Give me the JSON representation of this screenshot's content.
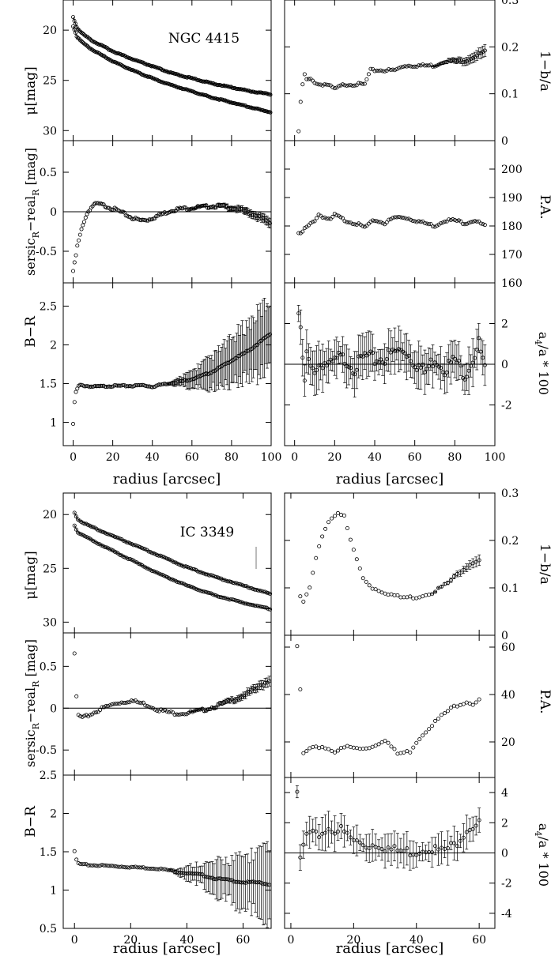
{
  "figures": [
    {
      "galaxy_label": "NGC 4415",
      "xlabel": "radius [arcsec]",
      "left_x": {
        "min": -5,
        "max": 100,
        "ticks": [
          0,
          20,
          40,
          60,
          80,
          100
        ]
      },
      "right_x": {
        "min": -5,
        "max": 100,
        "ticks": [
          0,
          20,
          40,
          60,
          80,
          100
        ]
      },
      "panels": {
        "mu": {
          "ylabel": "μ[mag]",
          "ylim": [
            31,
            17
          ],
          "ticks": [
            20,
            25,
            30
          ]
        },
        "resid": {
          "ylabel": "sersic_R−real_R [mag]",
          "ylim": [
            -0.9,
            0.9
          ],
          "ticks": [
            -0.5,
            0,
            0.5
          ],
          "tick_labels": [
            "-0.5",
            "0",
            "0.5"
          ]
        },
        "color": {
          "ylabel": "B−R",
          "ylim": [
            0.7,
            2.8
          ],
          "ticks": [
            1,
            1.5,
            2,
            2.5
          ]
        },
        "ell": {
          "ylabel": "1−b/a",
          "ylim": [
            0,
            0.3
          ],
          "ticks": [
            0,
            0.1,
            0.2,
            0.3
          ]
        },
        "pa": {
          "ylabel": "P.A.",
          "ylim": [
            160,
            210
          ],
          "ticks": [
            160,
            170,
            180,
            190,
            200
          ]
        },
        "a4": {
          "ylabel": "a4/a * 100",
          "ylim": [
            -4,
            4
          ],
          "ticks": [
            -2,
            0,
            2
          ]
        }
      }
    },
    {
      "galaxy_label": "IC 3349",
      "xlabel": "radius [arcsec]",
      "left_x": {
        "min": -4,
        "max": 70,
        "ticks": [
          0,
          20,
          40,
          60
        ]
      },
      "right_x": {
        "min": -2,
        "max": 65,
        "ticks": [
          0,
          20,
          40,
          60
        ]
      },
      "panels": {
        "mu": {
          "ylabel": "μ[mag]",
          "ylim": [
            31,
            18
          ],
          "ticks": [
            20,
            25,
            30
          ]
        },
        "resid": {
          "ylabel": "sersic_R−real_R [mag]",
          "ylim": [
            -0.8,
            0.9
          ],
          "ticks": [
            -0.5,
            0,
            0.5
          ],
          "tick_labels": [
            "-0.5",
            "0",
            "0.5"
          ]
        },
        "color": {
          "ylabel": "B−R",
          "ylim": [
            0.5,
            2.5
          ],
          "ticks": [
            0.5,
            1,
            1.5,
            2,
            2.5
          ]
        },
        "ell": {
          "ylabel": "1−b/a",
          "ylim": [
            0,
            0.3
          ],
          "ticks": [
            0,
            0.1,
            0.2,
            0.3
          ]
        },
        "pa": {
          "ylabel": "P.A.",
          "ylim": [
            5,
            65
          ],
          "ticks": [
            20,
            40,
            60
          ]
        },
        "a4": {
          "ylabel": "a4/a * 100",
          "ylim": [
            -5,
            5
          ],
          "ticks": [
            -4,
            -2,
            0,
            2,
            4
          ]
        }
      }
    }
  ],
  "chart_data": [
    {
      "type": "scatter",
      "title": "NGC 4415",
      "panel": "mu",
      "xlabel": "radius [arcsec]",
      "ylabel": "μ[mag]",
      "series": [
        {
          "x": [
            0,
            2,
            5,
            10,
            20,
            30,
            40,
            50,
            60,
            70,
            80,
            90,
            100
          ],
          "y": [
            18.7,
            19.8,
            20.4,
            21.1,
            22.1,
            22.9,
            23.6,
            24.3,
            24.8,
            25.3,
            25.7,
            26.1,
            26.4
          ]
        },
        {
          "x": [
            0,
            2,
            5,
            10,
            20,
            30,
            40,
            50,
            60,
            70,
            80,
            90,
            100
          ],
          "y": [
            19.6,
            20.7,
            21.3,
            22.0,
            23.1,
            24.0,
            24.8,
            25.5,
            26.1,
            26.7,
            27.2,
            27.7,
            28.2
          ]
        }
      ]
    },
    {
      "type": "scatter",
      "title": "NGC 4415",
      "panel": "resid",
      "xlabel": "radius [arcsec]",
      "ylabel": "sersic_R−real_R [mag]",
      "x": [
        0,
        1,
        2,
        4,
        6,
        8,
        10,
        12,
        14,
        18,
        22,
        26,
        30,
        34,
        38,
        42,
        46,
        50,
        55,
        60,
        65,
        70,
        75,
        80,
        85,
        90,
        95,
        100
      ],
      "y": [
        -0.75,
        -0.62,
        -0.45,
        -0.25,
        -0.08,
        0.02,
        0.08,
        0.1,
        0.09,
        0.06,
        0.02,
        -0.03,
        -0.08,
        -0.11,
        -0.1,
        -0.06,
        -0.02,
        0.02,
        0.04,
        0.05,
        0.06,
        0.07,
        0.07,
        0.05,
        0.02,
        -0.02,
        -0.08,
        -0.15
      ]
    },
    {
      "type": "scatter",
      "title": "NGC 4415",
      "panel": "color",
      "xlabel": "radius [arcsec]",
      "ylabel": "B−R",
      "x": [
        0,
        1,
        3,
        10,
        20,
        30,
        35,
        40,
        45,
        50,
        55,
        60,
        65,
        70,
        75,
        80,
        85,
        90,
        95,
        100
      ],
      "y": [
        0.98,
        1.37,
        1.48,
        1.46,
        1.47,
        1.47,
        1.48,
        1.46,
        1.49,
        1.51,
        1.53,
        1.56,
        1.6,
        1.65,
        1.72,
        1.8,
        1.87,
        1.95,
        2.05,
        2.15
      ]
    },
    {
      "type": "scatter",
      "title": "NGC 4415",
      "panel": "ell",
      "xlabel": "radius [arcsec]",
      "ylabel": "1−b/a",
      "x": [
        2,
        3,
        4,
        5,
        6,
        8,
        12,
        16,
        20,
        25,
        30,
        35,
        38,
        45,
        50,
        55,
        60,
        65,
        70,
        75,
        80,
        85,
        90,
        95
      ],
      "y": [
        0.02,
        0.08,
        0.12,
        0.14,
        0.13,
        0.13,
        0.12,
        0.12,
        0.11,
        0.12,
        0.12,
        0.12,
        0.15,
        0.15,
        0.15,
        0.16,
        0.16,
        0.16,
        0.16,
        0.17,
        0.17,
        0.17,
        0.18,
        0.19
      ]
    },
    {
      "type": "scatter",
      "title": "NGC 4415",
      "panel": "pa",
      "xlabel": "radius [arcsec]",
      "ylabel": "P.A.",
      "x": [
        2,
        3,
        5,
        7,
        10,
        12,
        15,
        18,
        20,
        25,
        30,
        35,
        40,
        45,
        50,
        55,
        60,
        65,
        70,
        75,
        80,
        85,
        90,
        95
      ],
      "y": [
        177.5,
        177,
        179,
        180,
        182,
        184,
        183,
        182,
        184,
        182,
        181,
        179.5,
        182,
        181,
        183,
        183,
        182,
        181,
        180,
        182,
        182,
        181,
        182,
        180
      ]
    },
    {
      "type": "scatter",
      "title": "NGC 4415",
      "panel": "a4",
      "xlabel": "radius [arcsec]",
      "ylabel": "a4/a * 100",
      "x": [
        2,
        3,
        4,
        5,
        6,
        8,
        10,
        14,
        18,
        22,
        26,
        30,
        35,
        40,
        45,
        50,
        55,
        60,
        65,
        70,
        75,
        80,
        85,
        90,
        92,
        95
      ],
      "y": [
        2.5,
        1.5,
        0.3,
        -1,
        0.5,
        -0.3,
        -0.2,
        0.1,
        -0.1,
        0.3,
        0.2,
        -0.2,
        0.4,
        0.2,
        0.3,
        0.6,
        0.7,
        0.1,
        -0.4,
        0.3,
        -0.2,
        0.2,
        -0.5,
        0.5,
        1.0,
        -0.3
      ]
    },
    {
      "type": "scatter",
      "title": "IC 3349",
      "panel": "mu",
      "xlabel": "radius [arcsec]",
      "ylabel": "μ[mag]",
      "series": [
        {
          "x": [
            0,
            1,
            2,
            5,
            10,
            20,
            30,
            40,
            50,
            60,
            70
          ],
          "y": [
            19.8,
            20.4,
            20.6,
            21.0,
            21.6,
            22.7,
            23.8,
            24.9,
            25.8,
            26.6,
            27.4
          ]
        },
        {
          "x": [
            0,
            1,
            2,
            5,
            10,
            20,
            30,
            40,
            50,
            60,
            70
          ],
          "y": [
            21.0,
            21.6,
            21.8,
            22.2,
            22.9,
            24.2,
            25.5,
            26.6,
            27.5,
            28.2,
            28.8
          ]
        }
      ]
    },
    {
      "type": "scatter",
      "title": "IC 3349",
      "panel": "resid",
      "xlabel": "radius [arcsec]",
      "ylabel": "sersic_R−real_R [mag]",
      "x": [
        0,
        1,
        3,
        6,
        10,
        15,
        20,
        25,
        30,
        35,
        40,
        45,
        50,
        55,
        60,
        65,
        70
      ],
      "y": [
        0.64,
        -0.08,
        -0.12,
        -0.07,
        0.0,
        0.06,
        0.09,
        0.05,
        -0.02,
        -0.06,
        -0.06,
        -0.03,
        0.02,
        0.08,
        0.15,
        0.24,
        0.35
      ]
    },
    {
      "type": "scatter",
      "title": "IC 3349",
      "panel": "color",
      "xlabel": "radius [arcsec]",
      "ylabel": "B−R",
      "x": [
        0,
        1,
        3,
        10,
        20,
        30,
        40,
        45,
        50,
        55,
        60,
        65,
        70
      ],
      "y": [
        1.5,
        1.35,
        1.33,
        1.32,
        1.3,
        1.28,
        1.22,
        1.2,
        1.15,
        1.13,
        1.1,
        1.1,
        1.07
      ]
    },
    {
      "type": "scatter",
      "title": "IC 3349",
      "panel": "ell",
      "xlabel": "radius [arcsec]",
      "ylabel": "1−b/a",
      "x": [
        3,
        4,
        6,
        8,
        10,
        12,
        15,
        17,
        19,
        21,
        23,
        26,
        30,
        35,
        40,
        45,
        50,
        55,
        57,
        60
      ],
      "y": [
        0.08,
        0.07,
        0.1,
        0.16,
        0.21,
        0.24,
        0.26,
        0.25,
        0.2,
        0.16,
        0.12,
        0.1,
        0.09,
        0.08,
        0.08,
        0.09,
        0.11,
        0.14,
        0.15,
        0.16
      ]
    },
    {
      "type": "scatter",
      "title": "IC 3349",
      "panel": "pa",
      "xlabel": "radius [arcsec]",
      "ylabel": "P.A.",
      "x": [
        2,
        3,
        4,
        6,
        10,
        14,
        18,
        22,
        26,
        30,
        34,
        38,
        40,
        44,
        48,
        52,
        56,
        58,
        60
      ],
      "y": [
        60,
        42,
        15,
        17,
        18,
        16,
        18,
        17,
        18,
        21,
        15,
        16,
        20,
        26,
        31,
        35,
        37,
        36,
        38
      ]
    },
    {
      "type": "scatter",
      "title": "IC 3349",
      "panel": "a4",
      "xlabel": "radius [arcsec]",
      "ylabel": "a4/a * 100",
      "x": [
        2,
        3,
        5,
        8,
        12,
        16,
        20,
        24,
        28,
        32,
        36,
        40,
        44,
        48,
        52,
        56,
        58,
        60
      ],
      "y": [
        3.8,
        -0.4,
        1.2,
        1.1,
        1.6,
        1.5,
        0.8,
        0.5,
        0.6,
        0.2,
        0.1,
        0.1,
        0.4,
        0.1,
        0.5,
        1.6,
        1.8,
        2.2
      ]
    }
  ]
}
